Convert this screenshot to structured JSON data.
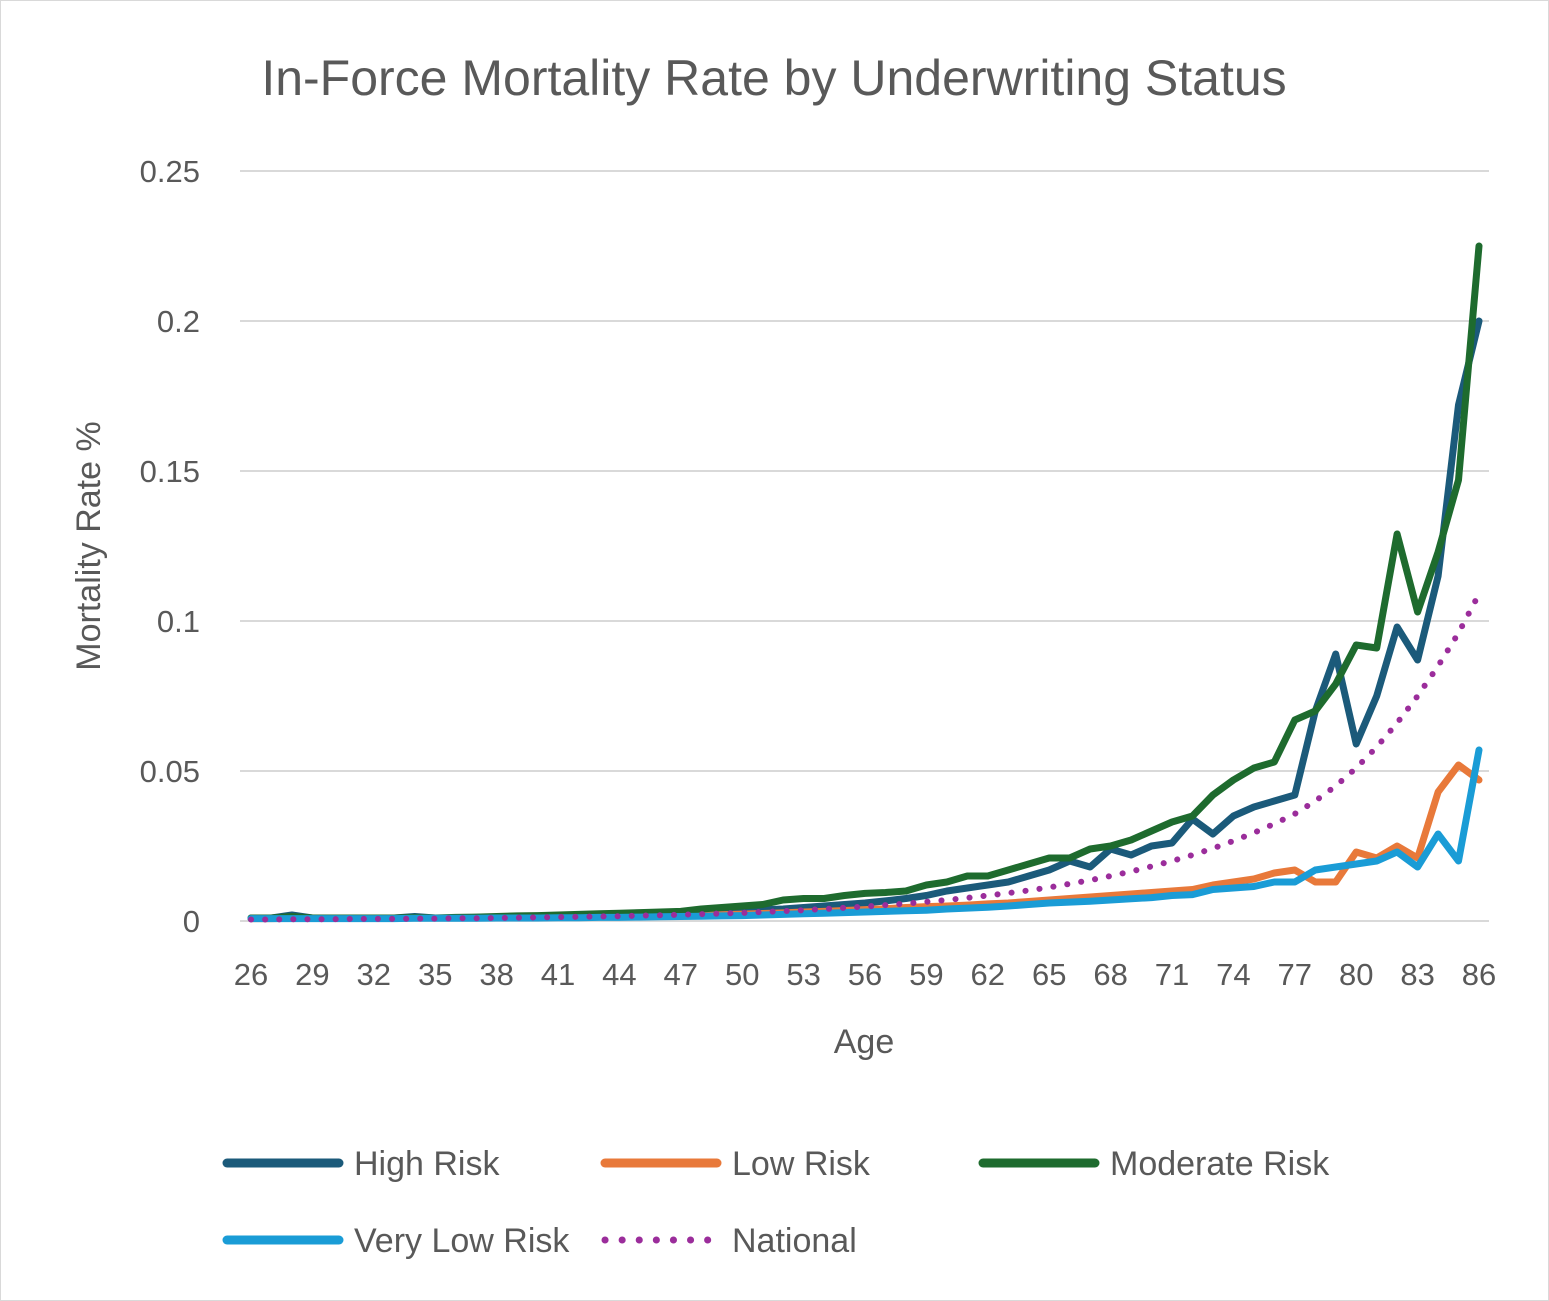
{
  "chart_data": {
    "type": "line",
    "title": "In-Force Mortality Rate by Underwriting Status",
    "xlabel": "Age",
    "ylabel": "Mortality Rate %",
    "ylim": [
      0,
      0.25
    ],
    "yticks": [
      0,
      0.05,
      0.1,
      0.15,
      0.2,
      0.25
    ],
    "ytick_labels": [
      "0",
      "0.05",
      "0.1",
      "0.15",
      "0.2",
      "0.25"
    ],
    "xtick_labels": [
      "26",
      "29",
      "32",
      "35",
      "38",
      "41",
      "44",
      "47",
      "50",
      "53",
      "56",
      "59",
      "62",
      "65",
      "68",
      "71",
      "74",
      "77",
      "80",
      "83",
      "86"
    ],
    "grid": true,
    "legend_position": "bottom",
    "x": [
      26,
      27,
      28,
      29,
      30,
      31,
      32,
      33,
      34,
      35,
      36,
      37,
      38,
      39,
      40,
      41,
      42,
      43,
      44,
      45,
      46,
      47,
      48,
      49,
      50,
      51,
      52,
      53,
      54,
      55,
      56,
      57,
      58,
      59,
      60,
      61,
      62,
      63,
      64,
      65,
      66,
      67,
      68,
      69,
      70,
      71,
      72,
      73,
      74,
      75,
      76,
      77,
      78,
      79,
      80,
      81,
      82,
      83,
      84,
      85,
      86
    ],
    "series": [
      {
        "name": "High Risk",
        "color": "#1b5a7a",
        "style": "solid",
        "values": [
          0.001,
          0.001,
          0.002,
          0.001,
          0.001,
          0.001,
          0.001,
          0.001,
          0.0015,
          0.001,
          0.001,
          0.0012,
          0.0013,
          0.0015,
          0.0015,
          0.0015,
          0.0017,
          0.0018,
          0.002,
          0.002,
          0.0022,
          0.0025,
          0.0028,
          0.003,
          0.0033,
          0.0037,
          0.004,
          0.0045,
          0.005,
          0.0055,
          0.006,
          0.0067,
          0.0075,
          0.0085,
          0.01,
          0.011,
          0.012,
          0.013,
          0.015,
          0.017,
          0.02,
          0.018,
          0.024,
          0.022,
          0.025,
          0.026,
          0.034,
          0.029,
          0.035,
          0.038,
          0.04,
          0.042,
          0.07,
          0.089,
          0.059,
          0.075,
          0.098,
          0.087,
          0.115,
          0.172,
          0.2
        ]
      },
      {
        "name": "Low Risk",
        "color": "#e8793a",
        "style": "solid",
        "values": [
          0.0008,
          0.0008,
          0.0009,
          0.0009,
          0.0009,
          0.0009,
          0.0009,
          0.001,
          0.001,
          0.001,
          0.001,
          0.001,
          0.0011,
          0.0011,
          0.0012,
          0.0012,
          0.0013,
          0.0014,
          0.0015,
          0.0016,
          0.0017,
          0.0018,
          0.002,
          0.0021,
          0.0023,
          0.0025,
          0.0027,
          0.003,
          0.0032,
          0.0035,
          0.0038,
          0.0041,
          0.0045,
          0.0048,
          0.005,
          0.0053,
          0.0057,
          0.006,
          0.0065,
          0.007,
          0.0075,
          0.008,
          0.0085,
          0.009,
          0.0095,
          0.01,
          0.0105,
          0.012,
          0.013,
          0.014,
          0.016,
          0.017,
          0.013,
          0.013,
          0.023,
          0.021,
          0.025,
          0.021,
          0.043,
          0.052,
          0.047
        ]
      },
      {
        "name": "Moderate Risk",
        "color": "#1e6b2e",
        "style": "solid",
        "values": [
          0.001,
          0.001,
          0.0015,
          0.001,
          0.001,
          0.001,
          0.001,
          0.001,
          0.0012,
          0.001,
          0.0012,
          0.0013,
          0.0015,
          0.0017,
          0.0018,
          0.002,
          0.0022,
          0.0024,
          0.0026,
          0.0028,
          0.003,
          0.0032,
          0.004,
          0.0045,
          0.005,
          0.0055,
          0.007,
          0.0075,
          0.0075,
          0.0085,
          0.0092,
          0.0095,
          0.01,
          0.012,
          0.013,
          0.015,
          0.015,
          0.017,
          0.019,
          0.021,
          0.021,
          0.024,
          0.025,
          0.027,
          0.03,
          0.033,
          0.035,
          0.042,
          0.047,
          0.051,
          0.053,
          0.067,
          0.07,
          0.079,
          0.092,
          0.091,
          0.129,
          0.103,
          0.123,
          0.147,
          0.225
        ]
      },
      {
        "name": "Very Low Risk",
        "color": "#1a9cd6",
        "style": "solid",
        "values": [
          0.0008,
          0.0008,
          0.0008,
          0.0008,
          0.0008,
          0.0008,
          0.0008,
          0.0008,
          0.0009,
          0.0009,
          0.0009,
          0.0009,
          0.001,
          0.001,
          0.001,
          0.0011,
          0.0011,
          0.0012,
          0.0012,
          0.0013,
          0.0014,
          0.0015,
          0.0016,
          0.0017,
          0.0018,
          0.002,
          0.0022,
          0.0024,
          0.0026,
          0.0028,
          0.003,
          0.0032,
          0.0034,
          0.0036,
          0.004,
          0.0043,
          0.0046,
          0.005,
          0.0055,
          0.006,
          0.0063,
          0.0066,
          0.007,
          0.0074,
          0.0078,
          0.0085,
          0.0088,
          0.0105,
          0.011,
          0.0115,
          0.013,
          0.013,
          0.017,
          0.018,
          0.019,
          0.02,
          0.023,
          0.018,
          0.029,
          0.02,
          0.057
        ]
      },
      {
        "name": "National",
        "color": "#9b2d9b",
        "style": "dotted",
        "values": [
          0.0005,
          0.0005,
          0.0006,
          0.0006,
          0.0006,
          0.0007,
          0.0007,
          0.0007,
          0.0008,
          0.0008,
          0.0009,
          0.0009,
          0.001,
          0.0011,
          0.0012,
          0.0013,
          0.0014,
          0.0015,
          0.0016,
          0.0018,
          0.0019,
          0.0021,
          0.0023,
          0.0025,
          0.0027,
          0.003,
          0.0033,
          0.0036,
          0.004,
          0.0044,
          0.0048,
          0.0053,
          0.0058,
          0.0064,
          0.007,
          0.0077,
          0.0085,
          0.0093,
          0.0102,
          0.0112,
          0.0124,
          0.0136,
          0.015,
          0.0165,
          0.0182,
          0.02,
          0.022,
          0.0242,
          0.0267,
          0.0294,
          0.0324,
          0.0357,
          0.04,
          0.045,
          0.051,
          0.058,
          0.066,
          0.075,
          0.085,
          0.096,
          0.109
        ]
      }
    ]
  }
}
